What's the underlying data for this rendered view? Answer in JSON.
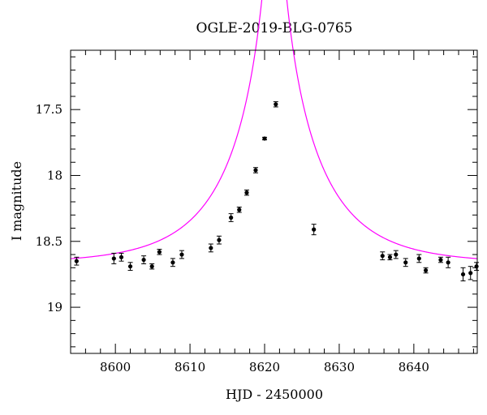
{
  "chart_data": {
    "type": "scatter",
    "title": "OGLE-2019-BLG-0765",
    "xlabel": "HJD - 2450000",
    "ylabel": "I magnitude",
    "xlim": [
      8594,
      8648.5
    ],
    "ylim": [
      19.35,
      17.05
    ],
    "y_inverted": true,
    "grid": false,
    "x_ticks": [
      8600,
      8610,
      8620,
      8630,
      8640
    ],
    "y_ticks": [
      17.5,
      18,
      18.5,
      19
    ],
    "series": [
      {
        "type": "scatter-errorbar",
        "color": "#000000",
        "points": [
          {
            "x": 8594.8,
            "y": 18.65,
            "err": 0.03
          },
          {
            "x": 8599.8,
            "y": 18.63,
            "err": 0.04
          },
          {
            "x": 8600.8,
            "y": 18.62,
            "err": 0.03
          },
          {
            "x": 8602.0,
            "y": 18.69,
            "err": 0.03
          },
          {
            "x": 8603.8,
            "y": 18.64,
            "err": 0.03
          },
          {
            "x": 8604.9,
            "y": 18.69,
            "err": 0.02
          },
          {
            "x": 8605.9,
            "y": 18.58,
            "err": 0.02
          },
          {
            "x": 8607.7,
            "y": 18.66,
            "err": 0.03
          },
          {
            "x": 8608.9,
            "y": 18.6,
            "err": 0.03
          },
          {
            "x": 8612.8,
            "y": 18.55,
            "err": 0.03
          },
          {
            "x": 8613.9,
            "y": 18.49,
            "err": 0.03
          },
          {
            "x": 8615.5,
            "y": 18.32,
            "err": 0.03
          },
          {
            "x": 8616.6,
            "y": 18.26,
            "err": 0.02
          },
          {
            "x": 8617.6,
            "y": 18.13,
            "err": 0.02
          },
          {
            "x": 8618.8,
            "y": 17.96,
            "err": 0.02
          },
          {
            "x": 8620.0,
            "y": 17.72,
            "err": 0.01
          },
          {
            "x": 8621.5,
            "y": 17.46,
            "err": 0.02
          },
          {
            "x": 8626.6,
            "y": 18.41,
            "err": 0.04
          },
          {
            "x": 8635.8,
            "y": 18.61,
            "err": 0.03
          },
          {
            "x": 8636.8,
            "y": 18.62,
            "err": 0.02
          },
          {
            "x": 8637.6,
            "y": 18.6,
            "err": 0.03
          },
          {
            "x": 8638.9,
            "y": 18.66,
            "err": 0.03
          },
          {
            "x": 8640.7,
            "y": 18.63,
            "err": 0.03
          },
          {
            "x": 8641.6,
            "y": 18.72,
            "err": 0.02
          },
          {
            "x": 8643.6,
            "y": 18.64,
            "err": 0.02
          },
          {
            "x": 8644.6,
            "y": 18.66,
            "err": 0.04
          },
          {
            "x": 8646.6,
            "y": 18.75,
            "err": 0.05
          },
          {
            "x": 8647.6,
            "y": 18.74,
            "err": 0.05
          },
          {
            "x": 8648.4,
            "y": 18.69,
            "err": 0.03
          }
        ]
      },
      {
        "type": "line",
        "color": "#ff00ff",
        "model": {
          "baseline": 18.67,
          "t0": 8621.3,
          "u0": 0.065,
          "tE": 11.5
        }
      }
    ]
  }
}
